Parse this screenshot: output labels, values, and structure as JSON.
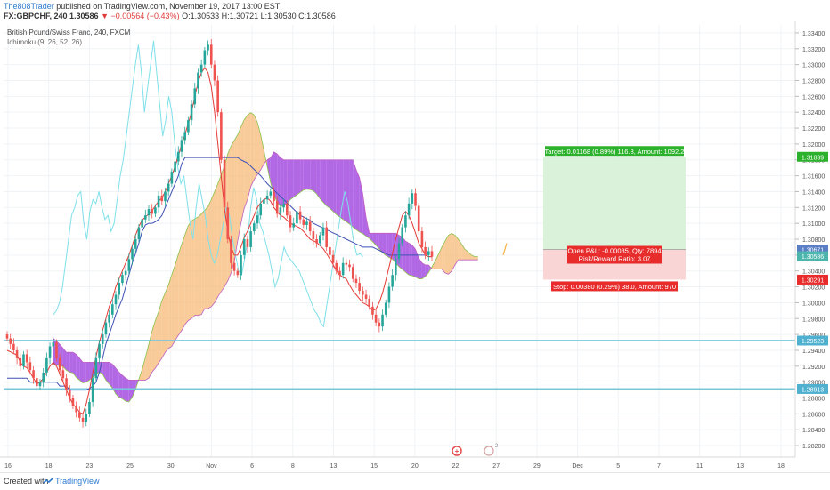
{
  "header": {
    "author": "The808Trader",
    "published": "published on TradingView.com, November 19, 2017 13:00 EST",
    "symbol_line_prefix": "FX:GBPCHF, 240  1.30586",
    "change": "▼ −0.00564 (−0.43%)",
    "ohlc": "O:1.30533 H:1.30721 L:1.30530 C:1.30586"
  },
  "legend": {
    "title": "British Pound/Swiss Franc, 240, FXCM",
    "indicator": "Ichimoku (9, 26, 52, 26)"
  },
  "footer": {
    "created_with": "Created with",
    "brand": "TradingView"
  },
  "colors": {
    "up": "#26a69a",
    "down": "#ef5350",
    "tenkan": "#e53935",
    "kijun": "#3f51b5",
    "chikou": "#7ee0ea",
    "cloud_bull": "#f7b977",
    "cloud_bear": "#a44de0",
    "hline": "#79c7dd",
    "long_target": "#d9f2d9",
    "long_stop": "#f9d5d5",
    "target_label": "#2bb12b",
    "stop_label": "#e82b2b"
  },
  "chart_data": {
    "type": "candlestick",
    "y_ticks": [
      "1.33400",
      "1.33200",
      "1.33000",
      "1.32800",
      "1.32600",
      "1.32400",
      "1.32200",
      "1.32000",
      "1.31800",
      "1.31600",
      "1.31400",
      "1.31200",
      "1.31000",
      "1.30800",
      "1.30600",
      "1.30400",
      "1.30200",
      "1.30000",
      "1.29800",
      "1.29600",
      "1.29400",
      "1.29200",
      "1.29000",
      "1.28800",
      "1.28600",
      "1.28400",
      "1.28200"
    ],
    "ylim": [
      1.281,
      1.335
    ],
    "x_ticks": [
      "16",
      "18",
      "23",
      "25",
      "30",
      "Nov",
      "6",
      "8",
      "13",
      "15",
      "20",
      "22",
      "27",
      "29",
      "Dec",
      "5",
      "7",
      "11",
      "13",
      "18"
    ],
    "price_labels": [
      {
        "text": "1.31839",
        "value": 1.31839,
        "color": "#2bb12b"
      },
      {
        "text": "1.30671",
        "value": 1.30671,
        "color": "#5b7fc4"
      },
      {
        "text": "1.30586",
        "value": 1.30586,
        "color": "#4db6ac"
      },
      {
        "text": "1.30291",
        "value": 1.30291,
        "color": "#e82b2b"
      },
      {
        "text": "1.29523",
        "value": 1.29523,
        "color": "#4fb0cf"
      },
      {
        "text": "1.28913",
        "value": 1.28913,
        "color": "#4fb0cf"
      }
    ],
    "horizontal_lines": [
      1.29523,
      1.28913
    ],
    "position": {
      "entry": 1.30671,
      "target": 1.31839,
      "stop": 1.30291,
      "target_text": "Target: 0.01168 (0.89%) 116.8, Amount: 1092.2",
      "pnl_text": "Open P&L: -0.00085, Qty: 7894",
      "rr_text": "Risk/Reward Ratio: 3.07",
      "stop_text": "Stop: 0.00380 (0.29%) 38.0, Amount: 970"
    },
    "close_series": [
      1.2955,
      1.2948,
      1.294,
      1.293,
      1.292,
      1.2935,
      1.2925,
      1.2915,
      1.2905,
      1.2895,
      1.29,
      1.2912,
      1.293,
      1.2945,
      1.295,
      1.293,
      1.2915,
      1.2905,
      1.289,
      1.288,
      1.287,
      1.2862,
      1.2855,
      1.285,
      1.286,
      1.2875,
      1.2905,
      1.293,
      1.2948,
      1.296,
      1.2975,
      1.2985,
      1.2998,
      1.301,
      1.3025,
      1.3035,
      1.304,
      1.3055,
      1.3068,
      1.308,
      1.3095,
      1.3105,
      1.311,
      1.3118,
      1.3112,
      1.312,
      1.3135,
      1.3128,
      1.314,
      1.315,
      1.3165,
      1.3178,
      1.319,
      1.3205,
      1.3215,
      1.323,
      1.325,
      1.327,
      1.329,
      1.33,
      1.3318,
      1.3325,
      1.33,
      1.328,
      1.324,
      1.318,
      1.312,
      1.308,
      1.305,
      1.304,
      1.3035,
      1.306,
      1.308,
      1.307,
      1.309,
      1.31,
      1.311,
      1.3125,
      1.313,
      1.3135,
      1.314,
      1.3128,
      1.3112,
      1.312,
      1.3125,
      1.311,
      1.3095,
      1.31,
      1.3115,
      1.3105,
      1.3098,
      1.3102,
      1.309,
      1.308,
      1.3075,
      1.3085,
      1.3095,
      1.307,
      1.306,
      1.305,
      1.304,
      1.3035,
      1.305,
      1.3048,
      1.3045,
      1.303,
      1.3025,
      1.3015,
      1.301,
      1.3005,
      1.2995,
      1.2985,
      1.2975,
      1.297,
      1.2985,
      1.3,
      1.302,
      1.3035,
      1.3055,
      1.3075,
      1.3095,
      1.311,
      1.3125,
      1.3138,
      1.3122,
      1.309,
      1.307,
      1.306,
      1.3065,
      1.3058
    ],
    "tenkan_series": [
      1.294,
      1.2938,
      1.2936,
      1.2934,
      1.2925,
      1.292,
      1.2918,
      1.2912,
      1.2905,
      1.2898,
      1.29,
      1.2905,
      1.2912,
      1.292,
      1.2925,
      1.292,
      1.291,
      1.29,
      1.289,
      1.288,
      1.2872,
      1.2868,
      1.2862,
      1.286,
      1.2872,
      1.289,
      1.2912,
      1.2932,
      1.295,
      1.2965,
      1.298,
      1.2995,
      1.3005,
      1.302,
      1.303,
      1.304,
      1.305,
      1.306,
      1.3072,
      1.3085,
      1.3096,
      1.3104,
      1.3108,
      1.3112,
      1.3116,
      1.3122,
      1.3128,
      1.3132,
      1.314,
      1.315,
      1.316,
      1.3172,
      1.3185,
      1.32,
      1.3212,
      1.3226,
      1.324,
      1.326,
      1.3278,
      1.329,
      1.3296,
      1.329,
      1.3272,
      1.324,
      1.32,
      1.316,
      1.312,
      1.309,
      1.307,
      1.306,
      1.306,
      1.307,
      1.3082,
      1.309,
      1.31,
      1.311,
      1.312,
      1.3126,
      1.313,
      1.3132,
      1.3128,
      1.312,
      1.3115,
      1.311,
      1.3108,
      1.3104,
      1.31,
      1.3098,
      1.3096,
      1.3094,
      1.309,
      1.3085,
      1.308,
      1.3078,
      1.3076,
      1.3072,
      1.3068,
      1.3062,
      1.3055,
      1.3048,
      1.304,
      1.3035,
      1.3032,
      1.303,
      1.3022,
      1.3015,
      1.301,
      1.3005,
      1.3,
      1.2998,
      1.2995,
      1.299,
      1.2992,
      1.3,
      1.3012,
      1.3028,
      1.3045,
      1.3062,
      1.308,
      1.3095,
      1.311,
      1.3115,
      1.311,
      1.31,
      1.3088,
      1.3075,
      1.3068,
      1.306,
      1.3058,
      1.3058
    ],
    "kijun_series": [
      1.2905,
      1.2905,
      1.2905,
      1.2905,
      1.2905,
      1.2905,
      1.2905,
      1.29,
      1.29,
      1.29,
      1.29,
      1.29,
      1.29,
      1.29,
      1.29,
      1.29,
      1.2895,
      1.2895,
      1.2895,
      1.289,
      1.289,
      1.289,
      1.289,
      1.289,
      1.289,
      1.2892,
      1.2895,
      1.29,
      1.2912,
      1.293,
      1.2948,
      1.296,
      1.2972,
      1.2985,
      1.2995,
      1.3005,
      1.302,
      1.3035,
      1.305,
      1.3062,
      1.3075,
      1.309,
      1.3098,
      1.31,
      1.31,
      1.3102,
      1.3105,
      1.311,
      1.312,
      1.313,
      1.314,
      1.315,
      1.316,
      1.3175,
      1.3183,
      1.3183,
      1.3183,
      1.3183,
      1.3183,
      1.3183,
      1.3183,
      1.3183,
      1.3183,
      1.3183,
      1.3183,
      1.3183,
      1.3183,
      1.3183,
      1.3183,
      1.3183,
      1.3183,
      1.318,
      1.3178,
      1.3176,
      1.3172,
      1.3168,
      1.3164,
      1.316,
      1.3155,
      1.315,
      1.3146,
      1.3142,
      1.3138,
      1.3134,
      1.313,
      1.3126,
      1.3122,
      1.3118,
      1.3114,
      1.311,
      1.3108,
      1.3106,
      1.3104,
      1.31,
      1.3098,
      1.3096,
      1.3094,
      1.3092,
      1.309,
      1.3088,
      1.3086,
      1.3084,
      1.3082,
      1.308,
      1.3078,
      1.3076,
      1.3074,
      1.3072,
      1.307,
      1.307,
      1.307,
      1.307,
      1.3068,
      1.3066,
      1.3064,
      1.3062,
      1.306,
      1.306,
      1.306,
      1.306,
      1.306,
      1.306,
      1.306,
      1.306,
      1.306,
      1.306,
      1.306,
      1.306,
      1.3058,
      1.3058
    ],
    "chikou_series": [
      1.2985,
      1.299,
      1.3,
      1.302,
      1.305,
      1.308,
      1.311,
      1.312,
      1.3135,
      1.314,
      1.31,
      1.308,
      1.3115,
      1.313,
      1.3125,
      1.314,
      1.312,
      1.3105,
      1.311,
      1.309,
      1.31,
      1.313,
      1.316,
      1.318,
      1.321,
      1.324,
      1.327,
      1.33,
      1.3325,
      1.329,
      1.324,
      1.327,
      1.33,
      1.333,
      1.329,
      1.325,
      1.321,
      1.323,
      1.326,
      1.324,
      1.32,
      1.317,
      1.315,
      1.316,
      1.313,
      1.31,
      1.308,
      1.312,
      1.315,
      1.313,
      1.311,
      1.308,
      1.306,
      1.305,
      1.306,
      1.308,
      1.31,
      1.312,
      1.311,
      1.308,
      1.306,
      1.304,
      1.3035,
      1.3055,
      1.308,
      1.312,
      1.3145,
      1.313,
      1.31,
      1.309,
      1.3075,
      1.306,
      1.304,
      1.302,
      1.303,
      1.305,
      1.307,
      1.306,
      1.3055,
      1.305,
      1.3045,
      1.304,
      1.303,
      1.302,
      1.301,
      1.3,
      1.299,
      1.2985,
      1.2975,
      1.297,
      1.2995,
      1.302,
      1.3045,
      1.307,
      1.3095,
      1.312,
      1.314,
      1.3125,
      1.31,
      1.3075,
      1.306,
      1.3062,
      1.3058
    ]
  }
}
